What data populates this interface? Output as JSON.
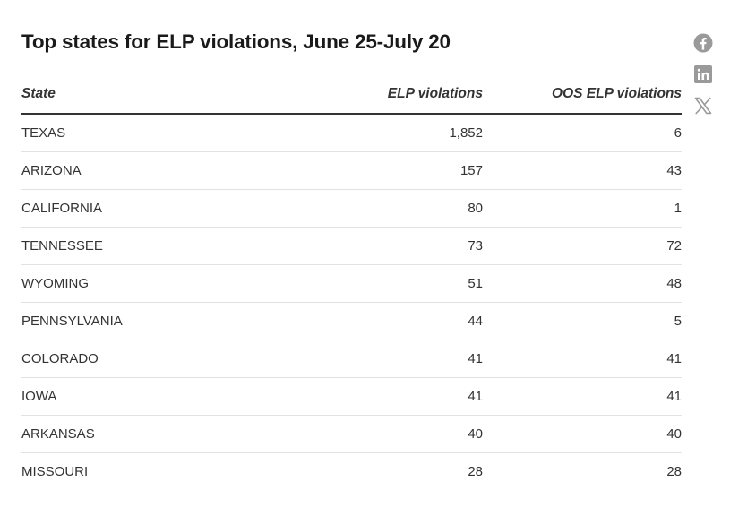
{
  "title": "Top states for ELP violations, June 25-July 20",
  "share": {
    "icons": [
      "facebook-icon",
      "linkedin-icon",
      "x-icon"
    ]
  },
  "chart_data": {
    "type": "table",
    "title": "Top states for ELP violations, June 25-July 20",
    "columns": [
      "State",
      "ELP violations",
      "OOS ELP violations"
    ],
    "rows": [
      {
        "state": "TEXAS",
        "elp": "1,852",
        "oos": "6"
      },
      {
        "state": "ARIZONA",
        "elp": "157",
        "oos": "43"
      },
      {
        "state": "CALIFORNIA",
        "elp": "80",
        "oos": "1"
      },
      {
        "state": "TENNESSEE",
        "elp": "73",
        "oos": "72"
      },
      {
        "state": "WYOMING",
        "elp": "51",
        "oos": "48"
      },
      {
        "state": "PENNSYLVANIA",
        "elp": "44",
        "oos": "5"
      },
      {
        "state": "COLORADO",
        "elp": "41",
        "oos": "41"
      },
      {
        "state": "IOWA",
        "elp": "41",
        "oos": "41"
      },
      {
        "state": "ARKANSAS",
        "elp": "40",
        "oos": "40"
      },
      {
        "state": "MISSOURI",
        "elp": "28",
        "oos": "28"
      }
    ]
  }
}
